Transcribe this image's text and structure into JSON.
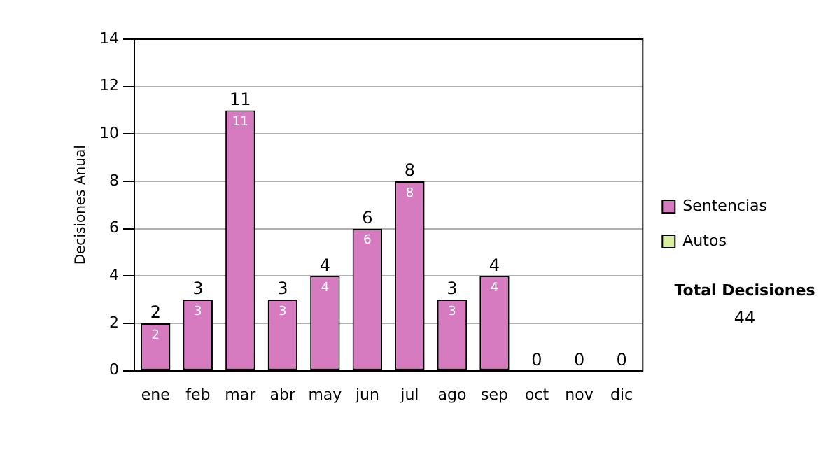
{
  "chart_data": {
    "type": "bar",
    "stacked": true,
    "ylabel": "Decisiones Anual",
    "categories": [
      "ene",
      "feb",
      "mar",
      "abr",
      "may",
      "jun",
      "jul",
      "ago",
      "sep",
      "oct",
      "nov",
      "dic"
    ],
    "series": [
      {
        "name": "Sentencias",
        "color": "#d67bbf",
        "values": [
          2,
          3,
          11,
          3,
          4,
          6,
          8,
          3,
          4,
          0,
          0,
          0
        ],
        "value_labels": [
          "2",
          "3",
          "11",
          "3",
          "4",
          "6",
          "8",
          "3",
          "4",
          null,
          null,
          null
        ]
      },
      {
        "name": "Autos",
        "color": "#d9eea0",
        "values": [
          0,
          0,
          0,
          0,
          0,
          0,
          0,
          0,
          0,
          0,
          0,
          0
        ]
      }
    ],
    "totals": [
      "2",
      "3",
      "11",
      "3",
      "4",
      "6",
      "8",
      "3",
      "4",
      "0",
      "0",
      "0"
    ],
    "ylim": [
      0,
      14
    ],
    "yticks": [
      0,
      2,
      4,
      6,
      8,
      10,
      12,
      14
    ],
    "grid": "y",
    "legend": "right",
    "annotations": [
      "Total Decisiones",
      "44"
    ]
  }
}
